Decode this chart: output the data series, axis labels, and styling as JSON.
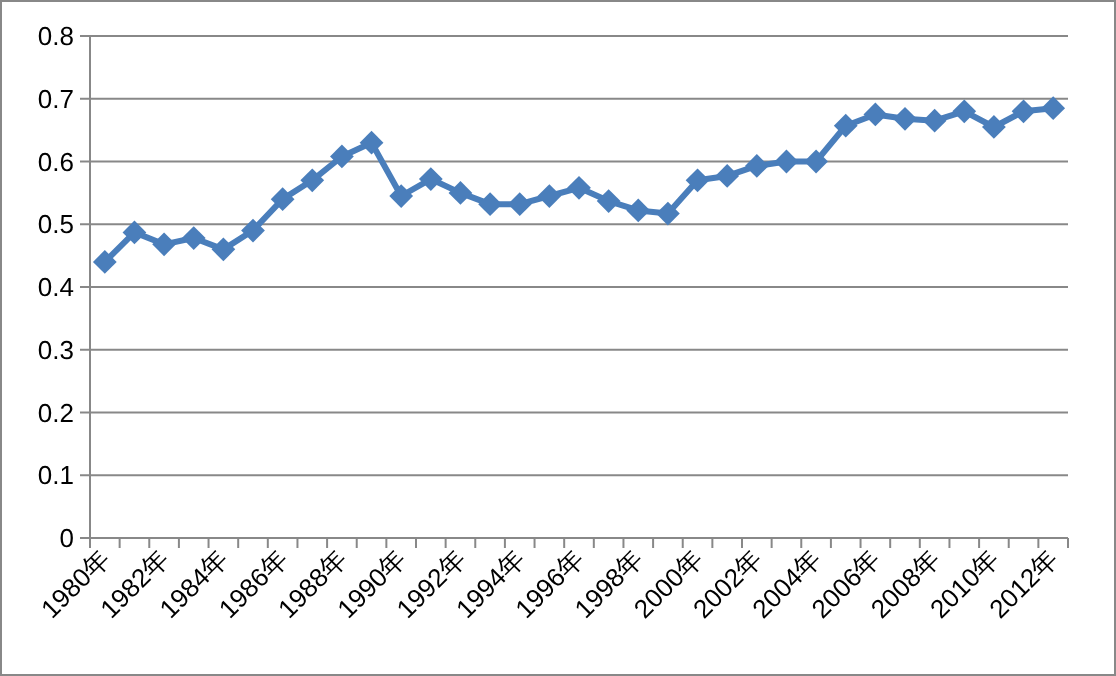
{
  "chart_data": {
    "type": "line",
    "categories": [
      "1980年",
      null,
      "1982年",
      null,
      "1984年",
      null,
      "1986年",
      null,
      "1988年",
      null,
      "1990年",
      null,
      "1992年",
      null,
      "1994年",
      null,
      "1996年",
      null,
      "1998年",
      null,
      "2000年",
      null,
      "2002年",
      null,
      "2004年",
      null,
      "2006年",
      null,
      "2008年",
      null,
      "2010年",
      null,
      "2012年"
    ],
    "series": [
      {
        "color": "#4a7ebb",
        "values": [
          0.44,
          0.487,
          0.468,
          0.478,
          0.46,
          0.49,
          0.54,
          0.57,
          0.608,
          0.63,
          0.545,
          0.572,
          0.55,
          0.532,
          0.532,
          0.545,
          0.558,
          0.537,
          0.522,
          0.517,
          0.57,
          0.577,
          0.593,
          0.6,
          0.6,
          0.657,
          0.675,
          0.668,
          0.665,
          0.68,
          0.655,
          0.68,
          0.685
        ]
      }
    ],
    "ylim": [
      0,
      0.8
    ],
    "yticks": [
      0,
      0.1,
      0.2,
      0.3,
      0.4,
      0.5,
      0.6,
      0.7,
      0.8
    ],
    "grid": "y",
    "marker": "diamond",
    "line_style": "solid"
  }
}
